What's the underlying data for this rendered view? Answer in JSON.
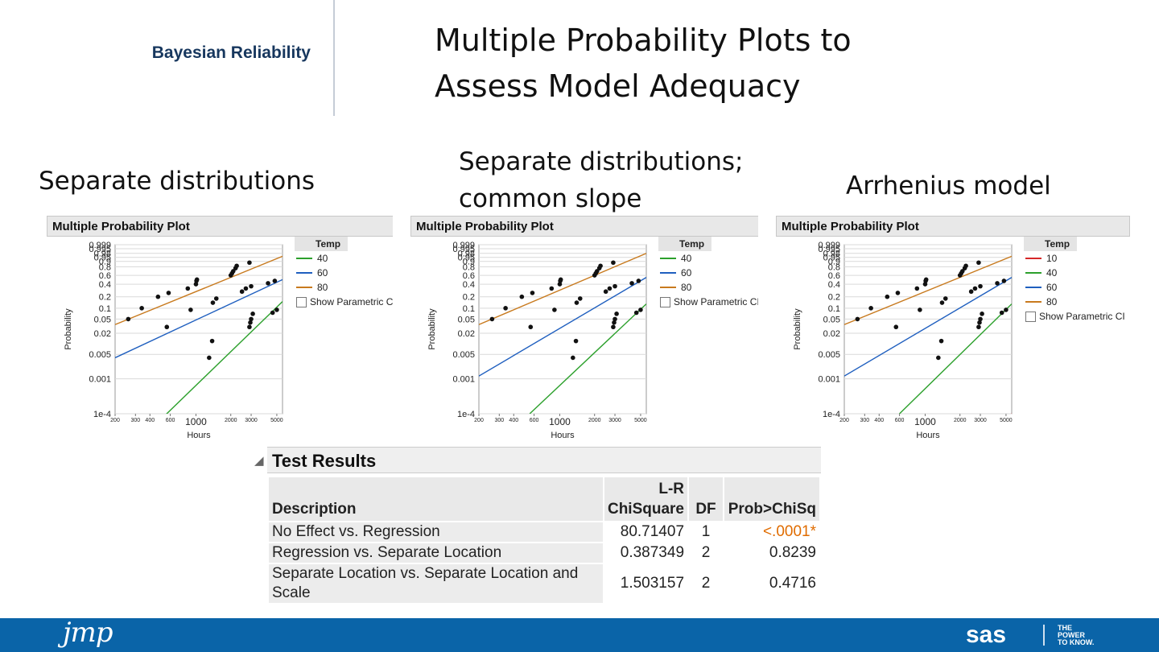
{
  "header": {
    "brand": "Bayesian Reliability",
    "title_line1": "Multiple Probability Plots to",
    "title_line2": "Assess Model Adequacy"
  },
  "subheads": {
    "left": "Separate distributions",
    "middle_line1": "Separate distributions;",
    "middle_line2": "common slope",
    "right": "Arrhenius model"
  },
  "colors": {
    "temp10": "#d62728",
    "temp40": "#2ca02c",
    "temp60": "#1f5fbf",
    "temp80": "#c87a1e",
    "highlight": "#e06c00",
    "footer": "#0a64a8"
  },
  "chart_data": [
    {
      "type": "scatter",
      "title": "Multiple Probability Plot",
      "xlabel": "Hours",
      "ylabel": "Probability",
      "xscale": "log",
      "x_ticks": [
        "200",
        "300",
        "400",
        "600",
        "1000",
        "2000",
        "3000",
        "5000"
      ],
      "y_ticks": [
        "0.999",
        "0.995",
        "0.98",
        "0.95",
        "0.9",
        "0.8",
        "0.6",
        "0.4",
        "0.2",
        "0.1",
        "0.05",
        "0.02",
        "0.005",
        "0.001",
        "1e-4"
      ],
      "legend_title": "Temp",
      "legend_position": "right",
      "show_ci_label": "Show Parametric CI",
      "series": [
        {
          "name": "40",
          "color_key": "temp40",
          "line": [
            [
              500,
              7e-05
            ],
            [
              5600,
              0.15
            ]
          ],
          "points": [
            [
              1300,
              0.004
            ],
            [
              1380,
              0.012
            ],
            [
              2900,
              0.03
            ],
            [
              2950,
              0.04
            ],
            [
              3000,
              0.05
            ],
            [
              3100,
              0.07
            ],
            [
              4600,
              0.075
            ],
            [
              5000,
              0.09
            ]
          ]
        },
        {
          "name": "60",
          "color_key": "temp60",
          "line": [
            [
              200,
              0.004
            ],
            [
              5600,
              0.5
            ]
          ],
          "points": [
            [
              560,
              0.03
            ],
            [
              900,
              0.09
            ],
            [
              1400,
              0.14
            ],
            [
              1500,
              0.18
            ],
            [
              2500,
              0.27
            ],
            [
              2700,
              0.32
            ],
            [
              3000,
              0.36
            ],
            [
              4200,
              0.42
            ],
            [
              4800,
              0.47
            ]
          ]
        },
        {
          "name": "80",
          "color_key": "temp80",
          "line": [
            [
              200,
              0.035
            ],
            [
              5600,
              0.96
            ]
          ],
          "points": [
            [
              260,
              0.05
            ],
            [
              340,
              0.1
            ],
            [
              470,
              0.2
            ],
            [
              580,
              0.25
            ],
            [
              850,
              0.32
            ],
            [
              1000,
              0.4
            ],
            [
              1010,
              0.47
            ],
            [
              1020,
              0.5
            ],
            [
              2000,
              0.6
            ],
            [
              2050,
              0.65
            ],
            [
              2100,
              0.7
            ],
            [
              2200,
              0.77
            ],
            [
              2250,
              0.82
            ],
            [
              2900,
              0.88
            ]
          ]
        }
      ]
    },
    {
      "type": "scatter",
      "title": "Multiple Probability Plot",
      "xlabel": "Hours",
      "ylabel": "Probability",
      "xscale": "log",
      "x_ticks": [
        "200",
        "300",
        "400",
        "600",
        "1000",
        "2000",
        "3000",
        "5000"
      ],
      "y_ticks": [
        "0.999",
        "0.995",
        "0.98",
        "0.95",
        "0.9",
        "0.8",
        "0.6",
        "0.4",
        "0.2",
        "0.1",
        "0.05",
        "0.02",
        "0.005",
        "0.001",
        "1e-4"
      ],
      "legend_title": "Temp",
      "legend_position": "right",
      "show_ci_label": "Show Parametric CI",
      "series": [
        {
          "name": "40",
          "color_key": "temp40",
          "line": [
            [
              550,
              0.0001
            ],
            [
              5600,
              0.13
            ]
          ],
          "points": [
            [
              1300,
              0.004
            ],
            [
              1380,
              0.012
            ],
            [
              2900,
              0.03
            ],
            [
              2950,
              0.04
            ],
            [
              3000,
              0.05
            ],
            [
              3100,
              0.07
            ],
            [
              4600,
              0.075
            ],
            [
              5000,
              0.09
            ]
          ]
        },
        {
          "name": "60",
          "color_key": "temp60",
          "line": [
            [
              200,
              0.0012
            ],
            [
              5600,
              0.55
            ]
          ],
          "points": [
            [
              560,
              0.03
            ],
            [
              900,
              0.09
            ],
            [
              1400,
              0.14
            ],
            [
              1500,
              0.18
            ],
            [
              2500,
              0.27
            ],
            [
              2700,
              0.32
            ],
            [
              3000,
              0.36
            ],
            [
              4200,
              0.42
            ],
            [
              4800,
              0.47
            ]
          ]
        },
        {
          "name": "80",
          "color_key": "temp80",
          "line": [
            [
              200,
              0.035
            ],
            [
              5600,
              0.98
            ]
          ],
          "points": [
            [
              260,
              0.05
            ],
            [
              340,
              0.1
            ],
            [
              470,
              0.2
            ],
            [
              580,
              0.25
            ],
            [
              850,
              0.32
            ],
            [
              1000,
              0.4
            ],
            [
              1010,
              0.47
            ],
            [
              1020,
              0.5
            ],
            [
              2000,
              0.6
            ],
            [
              2050,
              0.65
            ],
            [
              2100,
              0.7
            ],
            [
              2200,
              0.77
            ],
            [
              2250,
              0.82
            ],
            [
              2900,
              0.88
            ]
          ]
        }
      ]
    },
    {
      "type": "scatter",
      "title": "Multiple Probability Plot",
      "xlabel": "Hours",
      "ylabel": "Probability",
      "xscale": "log",
      "x_ticks": [
        "200",
        "300",
        "400",
        "600",
        "1000",
        "2000",
        "3000",
        "5000"
      ],
      "y_ticks": [
        "0.999",
        "0.995",
        "0.98",
        "0.95",
        "0.9",
        "0.8",
        "0.6",
        "0.4",
        "0.2",
        "0.1",
        "0.05",
        "0.02",
        "0.005",
        "0.001",
        "1e-4"
      ],
      "legend_title": "Temp",
      "legend_position": "right",
      "show_ci_label": "Show Parametric CI",
      "series": [
        {
          "name": "10",
          "color_key": "temp10",
          "line": [
            [
              5000,
              7e-05
            ],
            [
              5600,
              0.0001
            ]
          ],
          "points": []
        },
        {
          "name": "40",
          "color_key": "temp40",
          "line": [
            [
              600,
              0.0001
            ],
            [
              5600,
              0.13
            ]
          ],
          "points": [
            [
              1300,
              0.004
            ],
            [
              1380,
              0.012
            ],
            [
              2900,
              0.03
            ],
            [
              2950,
              0.04
            ],
            [
              3000,
              0.05
            ],
            [
              3100,
              0.07
            ],
            [
              4600,
              0.075
            ],
            [
              5000,
              0.09
            ]
          ]
        },
        {
          "name": "60",
          "color_key": "temp60",
          "line": [
            [
              200,
              0.0012
            ],
            [
              5600,
              0.55
            ]
          ],
          "points": [
            [
              560,
              0.03
            ],
            [
              900,
              0.09
            ],
            [
              1400,
              0.14
            ],
            [
              1500,
              0.18
            ],
            [
              2500,
              0.27
            ],
            [
              2700,
              0.32
            ],
            [
              3000,
              0.36
            ],
            [
              4200,
              0.42
            ],
            [
              4800,
              0.47
            ]
          ]
        },
        {
          "name": "80",
          "color_key": "temp80",
          "line": [
            [
              200,
              0.035
            ],
            [
              5600,
              0.96
            ]
          ],
          "points": [
            [
              260,
              0.05
            ],
            [
              340,
              0.1
            ],
            [
              470,
              0.2
            ],
            [
              580,
              0.25
            ],
            [
              850,
              0.32
            ],
            [
              1000,
              0.4
            ],
            [
              1010,
              0.47
            ],
            [
              1020,
              0.5
            ],
            [
              2000,
              0.6
            ],
            [
              2050,
              0.65
            ],
            [
              2100,
              0.7
            ],
            [
              2200,
              0.77
            ],
            [
              2250,
              0.82
            ],
            [
              2900,
              0.88
            ]
          ]
        }
      ]
    }
  ],
  "test_results": {
    "title": "Test Results",
    "col_description": "Description",
    "col_lr_top": "L-R",
    "col_lr_bottom": "ChiSquare",
    "col_df": "DF",
    "col_prob": "Prob>ChiSq",
    "rows": [
      {
        "desc": "No Effect vs. Regression",
        "chisq": "80.71407",
        "df": "1",
        "prob": "<.0001*"
      },
      {
        "desc": "Regression vs. Separate Location",
        "chisq": "0.387349",
        "df": "2",
        "prob": "0.8239"
      },
      {
        "desc": "Separate Location vs. Separate Location and Scale",
        "chisq": "1.503157",
        "df": "2",
        "prob": "0.4716"
      }
    ]
  },
  "footer": {
    "jmp_logo": "jmp",
    "sas_logo": "sas",
    "tagline_1": "THE",
    "tagline_2": "POWER",
    "tagline_3": "TO KNOW."
  }
}
